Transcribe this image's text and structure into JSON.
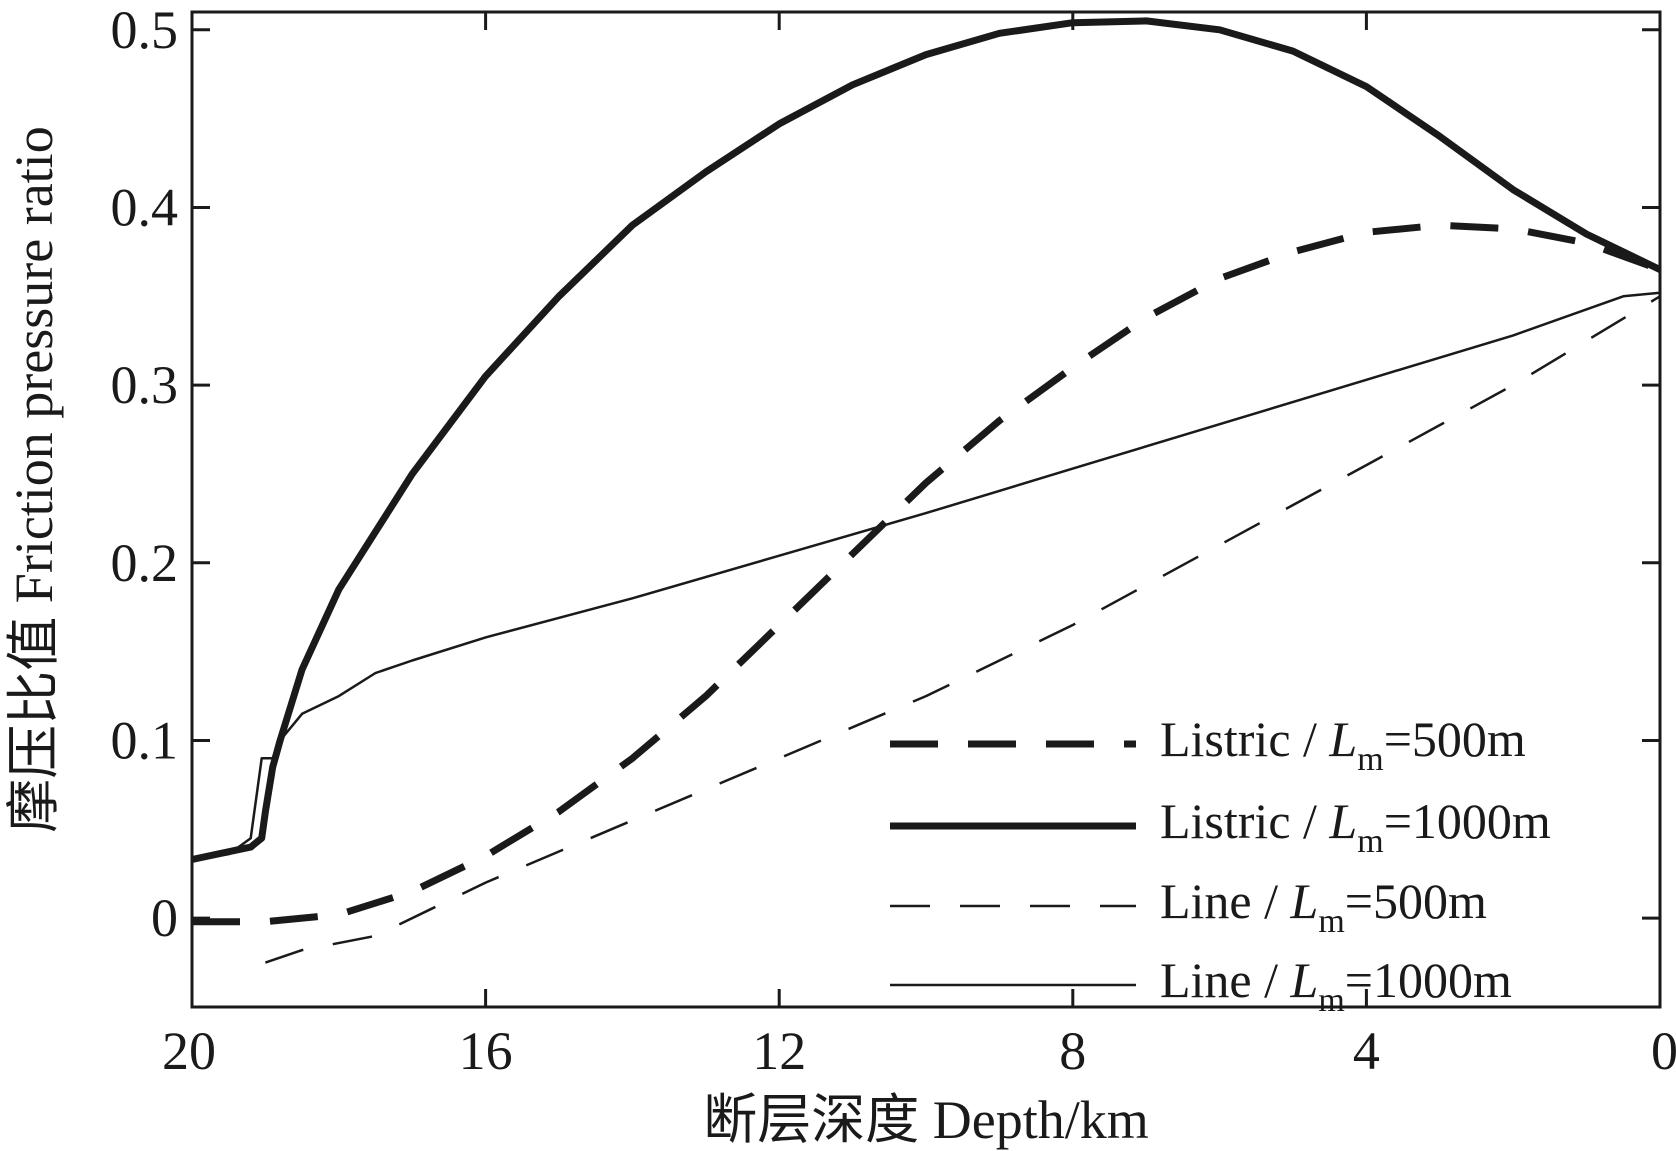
{
  "chart_data": {
    "type": "line",
    "xlabel": "断层深度 Depth/km",
    "ylabel": "摩压比值  Friction pressure ratio",
    "xlim": [
      20,
      0
    ],
    "ylim": [
      -0.05,
      0.51
    ],
    "x_reversed": true,
    "xticks": [
      20,
      16,
      12,
      8,
      4,
      0
    ],
    "yticks": [
      0,
      0.1,
      0.2,
      0.3,
      0.4,
      0.5
    ],
    "xtick_labels": [
      "20",
      "16",
      "12",
      "8",
      "4",
      "0"
    ],
    "ytick_labels": [
      "0",
      "0.1",
      "0.2",
      "0.3",
      "0.4",
      "0.5"
    ],
    "grid": false,
    "legend_position": "bottom-right",
    "series": [
      {
        "name": "Listric / Lm=500m",
        "legend_main": "Listric / ",
        "legend_sym": "L",
        "legend_sub": "m",
        "legend_tail": "=500m",
        "style": "thick-dashed",
        "color": "#1a1a1a",
        "x": [
          20,
          19,
          18,
          17,
          16,
          15,
          14,
          13,
          12,
          11,
          10,
          9,
          8,
          7,
          6,
          5,
          4,
          3,
          2,
          1,
          0
        ],
        "y": [
          -0.002,
          -0.002,
          0.002,
          0.015,
          0.035,
          0.06,
          0.09,
          0.125,
          0.165,
          0.205,
          0.245,
          0.28,
          0.31,
          0.338,
          0.36,
          0.375,
          0.386,
          0.39,
          0.388,
          0.38,
          0.365
        ]
      },
      {
        "name": "Listric / Lm=1000m",
        "legend_main": "Listric / ",
        "legend_sym": "L",
        "legend_sub": "m",
        "legend_tail": "=1000m",
        "style": "thick-solid",
        "color": "#1a1a1a",
        "x": [
          20,
          19.2,
          19.05,
          19.0,
          18.9,
          18.8,
          18.5,
          18,
          17,
          16,
          15,
          14,
          13,
          12,
          11,
          10,
          9,
          8,
          7,
          6,
          5,
          4,
          3,
          2,
          1,
          0
        ],
        "y": [
          0.033,
          0.04,
          0.045,
          0.06,
          0.085,
          0.1,
          0.14,
          0.185,
          0.25,
          0.305,
          0.35,
          0.39,
          0.42,
          0.447,
          0.469,
          0.486,
          0.498,
          0.504,
          0.505,
          0.5,
          0.488,
          0.468,
          0.44,
          0.41,
          0.385,
          0.365
        ]
      },
      {
        "name": "Line / Lm=500m",
        "legend_main": "Line / ",
        "legend_sym": "L",
        "legend_sub": "m",
        "legend_tail": "=500m",
        "style": "thin-dashed",
        "color": "#1a1a1a",
        "x": [
          19.0,
          18.5,
          17.5,
          16,
          14,
          12,
          10,
          8,
          6,
          4,
          2,
          1,
          0
        ],
        "y": [
          -0.025,
          -0.018,
          -0.01,
          0.02,
          0.055,
          0.09,
          0.125,
          0.165,
          0.21,
          0.255,
          0.3,
          0.325,
          0.35
        ]
      },
      {
        "name": "Line / Lm=1000m",
        "legend_main": "Line / ",
        "legend_sym": "L",
        "legend_sub": "m",
        "legend_tail": "=1000m",
        "style": "thin-solid",
        "color": "#1a1a1a",
        "x": [
          20,
          19.5,
          19.2,
          19.05,
          18.9,
          18.8,
          18.5,
          18,
          17.5,
          17,
          16,
          14,
          12,
          10,
          8,
          6,
          4,
          2,
          0.5,
          0
        ],
        "y": [
          0.033,
          0.036,
          0.045,
          0.09,
          0.09,
          0.1,
          0.115,
          0.125,
          0.138,
          0.145,
          0.158,
          0.18,
          0.204,
          0.228,
          0.253,
          0.278,
          0.303,
          0.328,
          0.35,
          0.352
        ]
      }
    ]
  }
}
